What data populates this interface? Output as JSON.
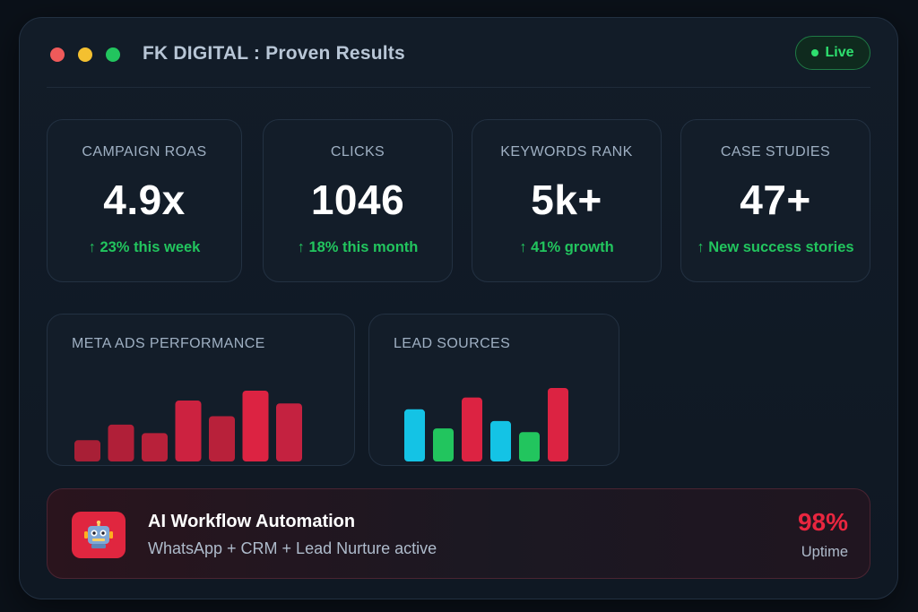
{
  "window": {
    "title": "FK DIGITAL : Proven Results",
    "live_label": "Live"
  },
  "stats": [
    {
      "label": "CAMPAIGN ROAS",
      "value": "4.9x",
      "delta": "↑ 23% this week"
    },
    {
      "label": "CLICKS",
      "value": "1046",
      "delta": "↑ 18% this month"
    },
    {
      "label": "KEYWORDS RANK",
      "value": "5k+",
      "delta": "↑ 41% growth"
    },
    {
      "label": "CASE STUDIES",
      "value": "47+",
      "delta": "↑ New success stories"
    }
  ],
  "chart_data": [
    {
      "type": "bar",
      "title": "META ADS PERFORMANCE",
      "values": [
        30,
        52,
        40,
        86,
        64,
        100,
        82
      ],
      "colors": [
        "#a81f36",
        "#b01f38",
        "#b8213a",
        "#cc2240",
        "#b8213a",
        "#dc2342",
        "#c42240"
      ]
    },
    {
      "type": "bar",
      "title": "LEAD SOURCES",
      "values": [
        71,
        45,
        87,
        55,
        40,
        100
      ],
      "colors": [
        "#14c3e5",
        "#22c55e",
        "#dc2342",
        "#14c3e5",
        "#22c55e",
        "#dc2342"
      ]
    }
  ],
  "automation": {
    "title": "AI Workflow Automation",
    "subtitle": "WhatsApp + CRM + Lead Nurture active",
    "value": "98%",
    "value_label": "Uptime",
    "icon": "robot-icon"
  },
  "colors": {
    "accent_green": "#22c55e",
    "accent_red": "#e8263f",
    "accent_cyan": "#14c3e5"
  }
}
